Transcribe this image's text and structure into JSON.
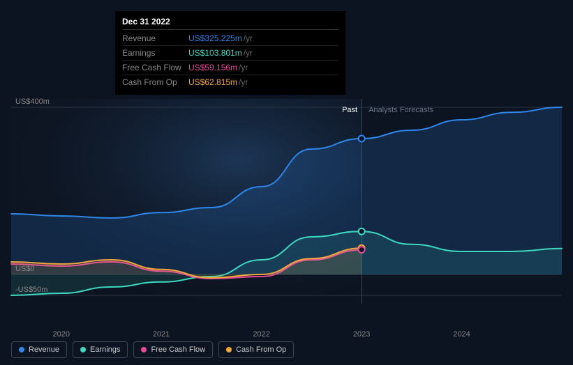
{
  "tooltip": {
    "date": "Dec 31 2022",
    "unit": "/yr",
    "rows": [
      {
        "label": "Revenue",
        "value": "US$325.225m",
        "color": "#2f86eb"
      },
      {
        "label": "Earnings",
        "value": "US$103.801m",
        "color": "#3dd9c1"
      },
      {
        "label": "Free Cash Flow",
        "value": "US$59.156m",
        "color": "#e84a9b"
      },
      {
        "label": "Cash From Op",
        "value": "US$62.815m",
        "color": "#f0a83c"
      }
    ]
  },
  "chart": {
    "type": "line",
    "background_color": "#0d1421",
    "grid_color": "#2a3544",
    "past_label": "Past",
    "past_label_color": "#ffffff",
    "forecast_label": "Analysts Forecasts",
    "forecast_label_color": "#6a7688",
    "x_axis": {
      "ticks": [
        "2020",
        "2021",
        "2022",
        "2023",
        "2024"
      ],
      "range_years": [
        2019.5,
        2025.0
      ],
      "marker_year": 2023.0
    },
    "y_axis": {
      "ticks": [
        {
          "label": "US$400m",
          "value": 400
        },
        {
          "label": "US$0",
          "value": 0
        },
        {
          "label": "-US$50m",
          "value": -50
        }
      ],
      "ylim": [
        -70,
        420
      ]
    },
    "series": [
      {
        "name": "Revenue",
        "color": "#2f86eb",
        "fill": true,
        "fill_opacity": 0.18,
        "points": [
          [
            2019.5,
            145
          ],
          [
            2020,
            140
          ],
          [
            2020.5,
            135
          ],
          [
            2021,
            148
          ],
          [
            2021.5,
            160
          ],
          [
            2022,
            210
          ],
          [
            2022.5,
            300
          ],
          [
            2023,
            325
          ],
          [
            2023.5,
            345
          ],
          [
            2024,
            370
          ],
          [
            2024.5,
            388
          ],
          [
            2025,
            400
          ]
        ]
      },
      {
        "name": "Earnings",
        "color": "#3dd9c1",
        "fill": true,
        "fill_opacity": 0.12,
        "points": [
          [
            2019.5,
            -50
          ],
          [
            2020,
            -45
          ],
          [
            2020.5,
            -30
          ],
          [
            2021,
            -18
          ],
          [
            2021.5,
            -5
          ],
          [
            2022,
            35
          ],
          [
            2022.5,
            90
          ],
          [
            2023,
            103
          ],
          [
            2023.5,
            72
          ],
          [
            2024,
            55
          ],
          [
            2024.5,
            55
          ],
          [
            2025,
            62
          ]
        ]
      },
      {
        "name": "Free Cash Flow",
        "color": "#e84a9b",
        "fill": false,
        "points": [
          [
            2019.5,
            25
          ],
          [
            2020,
            20
          ],
          [
            2020.5,
            30
          ],
          [
            2021,
            8
          ],
          [
            2021.5,
            -10
          ],
          [
            2022,
            -5
          ],
          [
            2022.5,
            35
          ],
          [
            2023,
            59
          ]
        ]
      },
      {
        "name": "Cash From Op",
        "color": "#f0a83c",
        "fill": true,
        "fill_opacity": 0.15,
        "points": [
          [
            2019.5,
            30
          ],
          [
            2020,
            25
          ],
          [
            2020.5,
            35
          ],
          [
            2021,
            12
          ],
          [
            2021.5,
            -8
          ],
          [
            2022,
            0
          ],
          [
            2022.5,
            38
          ],
          [
            2023,
            63
          ]
        ]
      }
    ],
    "markers": [
      {
        "year": 2023,
        "value": 325,
        "color": "#2f86eb"
      },
      {
        "year": 2023,
        "value": 103,
        "color": "#3dd9c1"
      },
      {
        "year": 2023,
        "value": 63,
        "color": "#f0a83c"
      },
      {
        "year": 2023,
        "value": 59,
        "color": "#e84a9b"
      }
    ],
    "line_width": 2
  },
  "legend": [
    {
      "label": "Revenue",
      "color": "#2f86eb"
    },
    {
      "label": "Earnings",
      "color": "#3dd9c1"
    },
    {
      "label": "Free Cash Flow",
      "color": "#e84a9b"
    },
    {
      "label": "Cash From Op",
      "color": "#f0a83c"
    }
  ]
}
